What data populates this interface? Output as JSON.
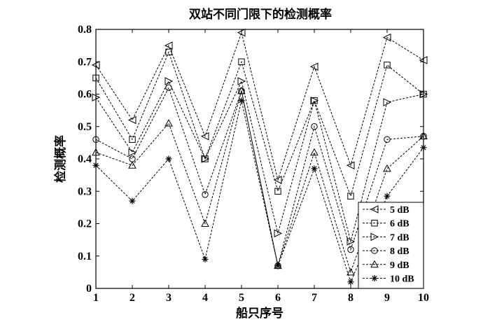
{
  "chart_data": {
    "type": "line",
    "title": "双站不同门限下的检测概率",
    "xlabel": "船只序号",
    "ylabel": "检测概率",
    "xlim": [
      1,
      10
    ],
    "ylim": [
      0,
      0.8
    ],
    "x": [
      1,
      2,
      3,
      4,
      5,
      6,
      7,
      8,
      9,
      10
    ],
    "xticks": [
      "1",
      "2",
      "3",
      "4",
      "5",
      "6",
      "7",
      "8",
      "9",
      "10"
    ],
    "yticks": [
      "0",
      "0.1",
      "0.2",
      "0.3",
      "0.4",
      "0.5",
      "0.6",
      "0.7",
      "0.8"
    ],
    "grid": false,
    "legend_position": "bottom-right",
    "series": [
      {
        "name": "5 dB",
        "marker": "triangle-left",
        "values": [
          0.69,
          0.52,
          0.75,
          0.47,
          0.79,
          0.335,
          0.685,
          0.38,
          0.775,
          0.705
        ]
      },
      {
        "name": "6 dB",
        "marker": "square",
        "values": [
          0.65,
          0.46,
          0.73,
          0.4,
          0.7,
          0.3,
          0.58,
          0.285,
          0.69,
          0.6
        ]
      },
      {
        "name": "7 dB",
        "marker": "triangle-right",
        "values": [
          0.59,
          0.42,
          0.64,
          0.4,
          0.64,
          0.17,
          0.58,
          0.145,
          0.575,
          0.6
        ]
      },
      {
        "name": "8 dB",
        "marker": "circle",
        "values": [
          0.46,
          0.4,
          0.62,
          0.29,
          0.61,
          0.07,
          0.5,
          0.12,
          0.46,
          0.47
        ]
      },
      {
        "name": "9 dB",
        "marker": "triangle-up",
        "values": [
          0.42,
          0.38,
          0.51,
          0.2,
          0.61,
          0.07,
          0.42,
          0.05,
          0.37,
          0.47
        ]
      },
      {
        "name": "10 dB",
        "marker": "star",
        "values": [
          0.38,
          0.27,
          0.4,
          0.09,
          0.58,
          0.07,
          0.37,
          0.02,
          0.285,
          0.435
        ]
      }
    ],
    "colors": {
      "line": "#000000",
      "background": "#ffffff"
    }
  }
}
